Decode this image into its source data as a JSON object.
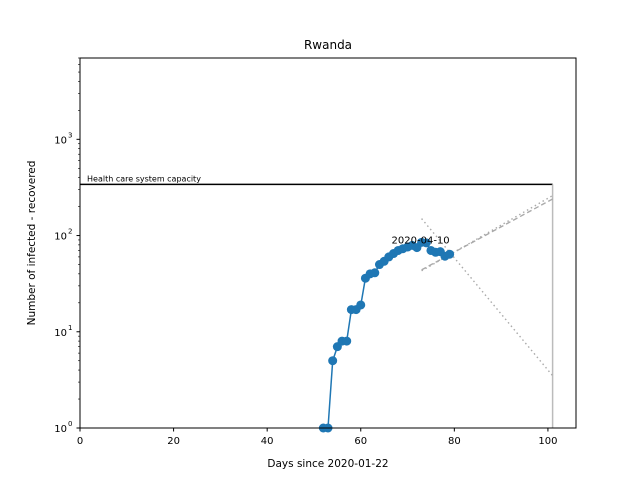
{
  "chart_data": {
    "type": "line",
    "title": "Rwanda",
    "xlabel": "Days since 2020-01-22",
    "ylabel": "Number of infected - recovered",
    "xlim": [
      0,
      106
    ],
    "ylim": [
      1,
      7000
    ],
    "yscale": "log",
    "xticks": [
      0,
      20,
      40,
      60,
      80,
      100
    ],
    "xtick_labels": [
      "0",
      "20",
      "40",
      "60",
      "80",
      "100"
    ],
    "yticks": [
      1,
      10,
      100,
      1000
    ],
    "ytick_labels": [
      "10",
      "10",
      "10",
      "10"
    ],
    "ytick_exponents": [
      "0",
      "1",
      "2",
      "3"
    ],
    "grid": false,
    "legend": "none",
    "series": [
      {
        "color": "#1f77b4",
        "marker": "circle",
        "x": [
          52,
          53,
          54,
          55,
          56,
          57,
          58,
          59,
          60,
          61,
          62,
          63,
          64,
          65,
          66,
          67,
          68,
          69,
          70,
          71,
          72,
          73,
          74,
          75,
          76,
          77,
          78,
          79
        ],
        "y": [
          1,
          1,
          5,
          7,
          8,
          8,
          17,
          17,
          19,
          36,
          40,
          41,
          50,
          54,
          60,
          65,
          70,
          73,
          76,
          79,
          75,
          85,
          84,
          70,
          67,
          68,
          61,
          64
        ]
      }
    ],
    "capacity_line": {
      "label": "Health care system capacity",
      "y": 340,
      "x_start": 0,
      "x_end": 101,
      "color": "#000000"
    },
    "end_vline": {
      "x": 101,
      "color": "#bbbbbb"
    },
    "trend_lines": [
      {
        "style": "dotted",
        "color": "#aaaaaa",
        "x": [
          73,
          101
        ],
        "y": [
          150,
          3.5
        ]
      },
      {
        "style": "dotted",
        "color": "#aaaaaa",
        "x": [
          73,
          101
        ],
        "y": [
          43,
          260
        ]
      },
      {
        "style": "dashed",
        "color": "#aaaaaa",
        "x": [
          73,
          101
        ],
        "y": [
          44,
          240
        ]
      }
    ],
    "annotations": [
      {
        "text": "2020-04-10",
        "x": 79,
        "y": 72
      }
    ]
  }
}
